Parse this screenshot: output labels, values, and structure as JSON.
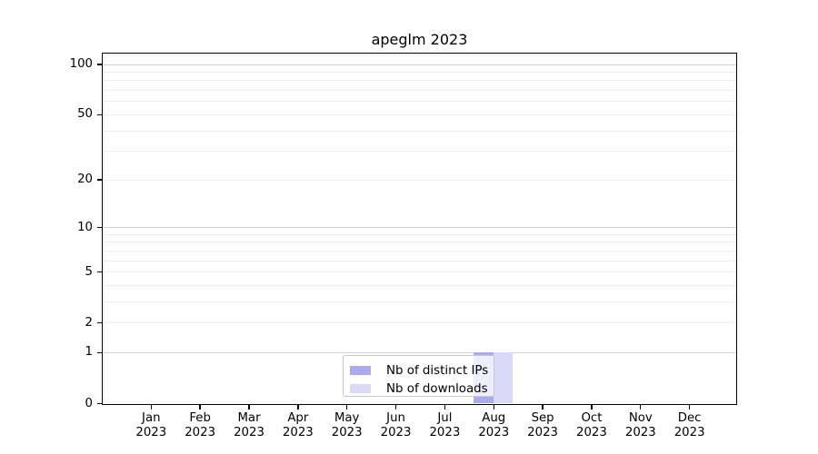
{
  "chart_data": {
    "type": "bar",
    "title": "apeglm 2023",
    "categories": [
      "Jan 2023",
      "Feb 2023",
      "Mar 2023",
      "Apr 2023",
      "May 2023",
      "Jun 2023",
      "Jul 2023",
      "Aug 2023",
      "Sep 2023",
      "Oct 2023",
      "Nov 2023",
      "Dec 2023"
    ],
    "series": [
      {
        "name": "Nb of distinct IPs",
        "color": "#aaaaf0",
        "values": [
          0,
          0,
          0,
          0,
          0,
          0,
          0,
          1,
          0,
          0,
          0,
          0
        ]
      },
      {
        "name": "Nb of downloads",
        "color": "#dadaf8",
        "values": [
          0,
          0,
          0,
          0,
          0,
          0,
          0,
          1,
          0,
          0,
          0,
          0
        ]
      }
    ],
    "yscale": "log1p",
    "ylim": [
      0,
      115
    ],
    "yticks": [
      0,
      1,
      2,
      5,
      10,
      20,
      50,
      100
    ],
    "major_gridlines": [
      1,
      10,
      100
    ],
    "minor_gridlines": [
      2,
      3,
      4,
      5,
      6,
      7,
      8,
      9,
      20,
      30,
      40,
      50,
      60,
      70,
      80,
      90
    ],
    "xlabel": "",
    "ylabel": "",
    "grid": "on",
    "legend_position": "lower center (inside axes)",
    "colors": {
      "axis": "#000000",
      "major_grid": "#d3d3d3",
      "minor_grid": "#ededed",
      "background": "#ffffff"
    }
  }
}
